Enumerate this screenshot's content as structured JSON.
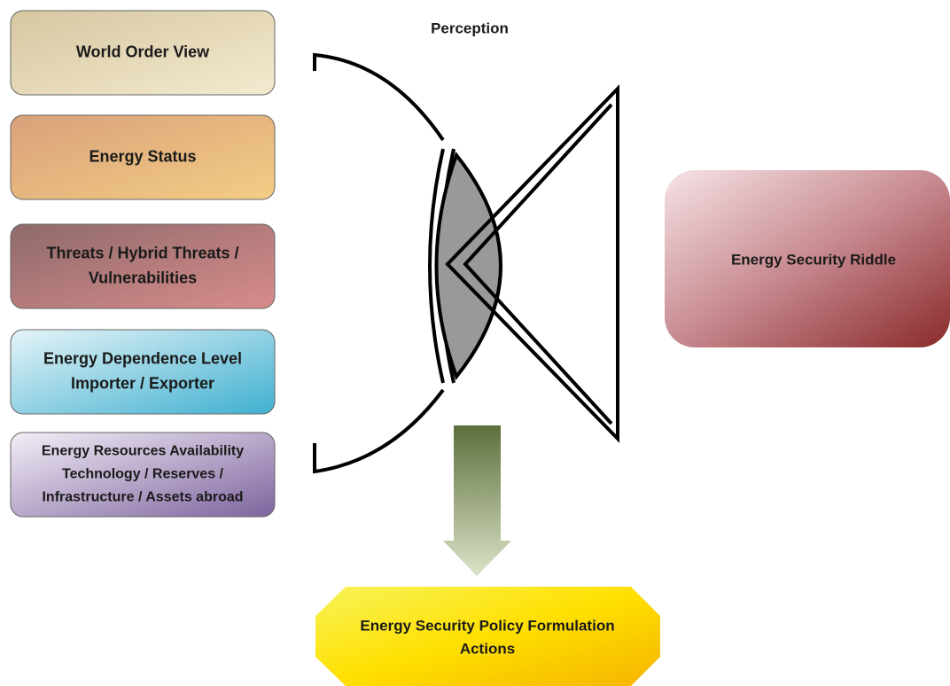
{
  "header": {
    "title": "Perception"
  },
  "boxes": [
    {
      "lines": [
        "World Order View"
      ]
    },
    {
      "lines": [
        "Energy Status"
      ]
    },
    {
      "lines": [
        "Threats / Hybrid Threats /",
        "Vulnerabilities"
      ]
    },
    {
      "lines": [
        "Energy Dependence Level",
        "Importer / Exporter"
      ]
    },
    {
      "lines": [
        "Energy Resources Availability",
        "Technology / Reserves /",
        "Infrastructure / Assets abroad"
      ]
    }
  ],
  "riddle": {
    "label": "Energy Security Riddle"
  },
  "policy": {
    "lines": [
      "Energy Security Policy Formulation",
      "Actions"
    ]
  }
}
